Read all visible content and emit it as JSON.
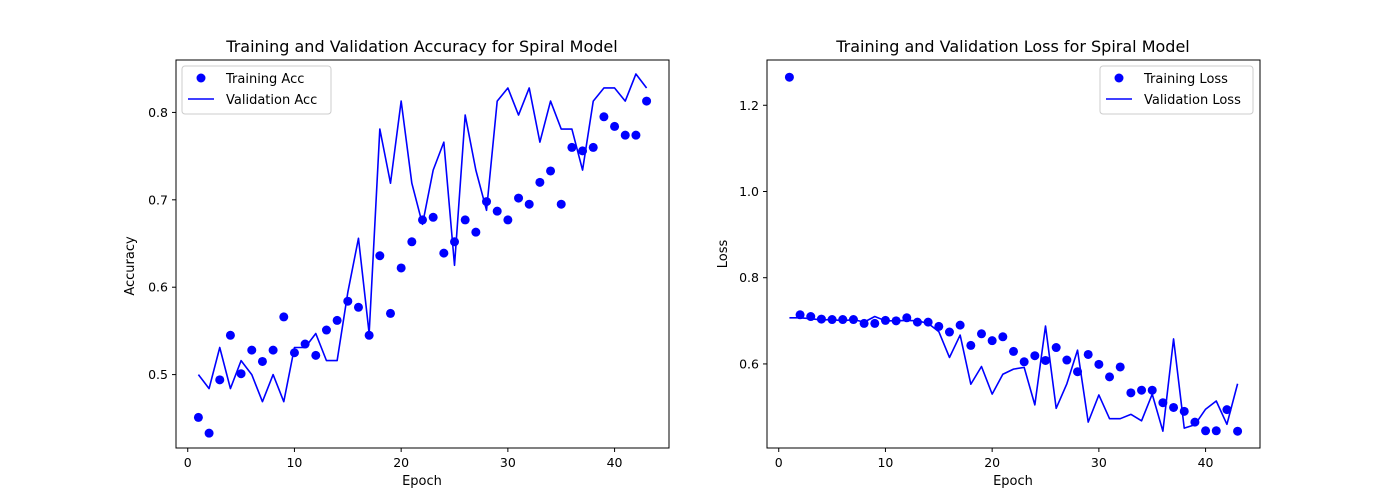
{
  "chart_data": [
    {
      "type": "scatter+line",
      "title": "Training and Validation Accuracy for Spiral Model",
      "xlabel": "Epoch",
      "ylabel": "Accuracy",
      "xlim": [
        -1.1,
        45.1
      ],
      "ylim": [
        0.416,
        0.86
      ],
      "xticks": [
        0,
        10,
        20,
        30,
        40
      ],
      "yticks": [
        0.5,
        0.6,
        0.7,
        0.8
      ],
      "legend_position": "upper-left",
      "color": "#0000ff",
      "x": [
        1,
        2,
        3,
        4,
        5,
        6,
        7,
        8,
        9,
        10,
        11,
        12,
        13,
        14,
        15,
        16,
        17,
        18,
        19,
        20,
        21,
        22,
        23,
        24,
        25,
        26,
        27,
        28,
        29,
        30,
        31,
        32,
        33,
        34,
        35,
        36,
        37,
        38,
        39,
        40,
        41,
        42,
        43
      ],
      "series": [
        {
          "name": "Training Acc",
          "style": "scatter",
          "values": [
            0.451,
            0.433,
            0.494,
            0.545,
            0.501,
            0.528,
            0.515,
            0.528,
            0.566,
            0.525,
            0.535,
            0.522,
            0.551,
            0.562,
            0.584,
            0.577,
            0.545,
            0.636,
            0.57,
            0.622,
            0.652,
            0.677,
            0.68,
            0.639,
            0.652,
            0.677,
            0.663,
            0.698,
            0.687,
            0.677,
            0.702,
            0.695,
            0.72,
            0.733,
            0.695,
            0.76,
            0.756,
            0.76,
            0.795,
            0.784,
            0.774,
            0.774,
            0.813
          ]
        },
        {
          "name": "Validation Acc",
          "style": "line",
          "values": [
            0.5,
            0.484,
            0.531,
            0.484,
            0.516,
            0.5,
            0.469,
            0.5,
            0.469,
            0.531,
            0.531,
            0.547,
            0.516,
            0.516,
            0.594,
            0.656,
            0.547,
            0.781,
            0.719,
            0.813,
            0.719,
            0.672,
            0.734,
            0.766,
            0.625,
            0.797,
            0.734,
            0.688,
            0.813,
            0.828,
            0.797,
            0.828,
            0.766,
            0.813,
            0.781,
            0.781,
            0.734,
            0.813,
            0.828,
            0.828,
            0.813,
            0.844,
            0.828
          ]
        }
      ]
    },
    {
      "type": "scatter+line",
      "title": "Training and Validation Loss for Spiral Model",
      "xlabel": "Epoch",
      "ylabel": "Loss",
      "xlim": [
        -1.1,
        45.1
      ],
      "ylim": [
        0.405,
        1.305
      ],
      "xticks": [
        0,
        10,
        20,
        30,
        40
      ],
      "yticks": [
        0.6,
        0.8,
        1.0,
        1.2
      ],
      "legend_position": "upper-right",
      "color": "#0000ff",
      "x": [
        1,
        2,
        3,
        4,
        5,
        6,
        7,
        8,
        9,
        10,
        11,
        12,
        13,
        14,
        15,
        16,
        17,
        18,
        19,
        20,
        21,
        22,
        23,
        24,
        25,
        26,
        27,
        28,
        29,
        30,
        31,
        32,
        33,
        34,
        35,
        36,
        37,
        38,
        39,
        40,
        41,
        42,
        43
      ],
      "series": [
        {
          "name": "Training Loss",
          "style": "scatter",
          "values": [
            1.265,
            0.714,
            0.71,
            0.704,
            0.703,
            0.703,
            0.703,
            0.694,
            0.694,
            0.701,
            0.7,
            0.707,
            0.697,
            0.697,
            0.687,
            0.674,
            0.69,
            0.643,
            0.67,
            0.654,
            0.663,
            0.629,
            0.605,
            0.619,
            0.608,
            0.638,
            0.609,
            0.582,
            0.622,
            0.599,
            0.57,
            0.593,
            0.533,
            0.539,
            0.539,
            0.51,
            0.499,
            0.49,
            0.465,
            0.445,
            0.445,
            0.494,
            0.444
          ]
        },
        {
          "name": "Validation Loss",
          "style": "line",
          "values": [
            0.707,
            0.707,
            0.705,
            0.702,
            0.703,
            0.7,
            0.703,
            0.697,
            0.71,
            0.7,
            0.7,
            0.701,
            0.7,
            0.694,
            0.675,
            0.615,
            0.667,
            0.553,
            0.594,
            0.53,
            0.576,
            0.588,
            0.592,
            0.505,
            0.688,
            0.497,
            0.554,
            0.632,
            0.465,
            0.528,
            0.473,
            0.473,
            0.483,
            0.468,
            0.53,
            0.444,
            0.658,
            0.451,
            0.459,
            0.495,
            0.514,
            0.46,
            0.554
          ]
        }
      ]
    }
  ]
}
